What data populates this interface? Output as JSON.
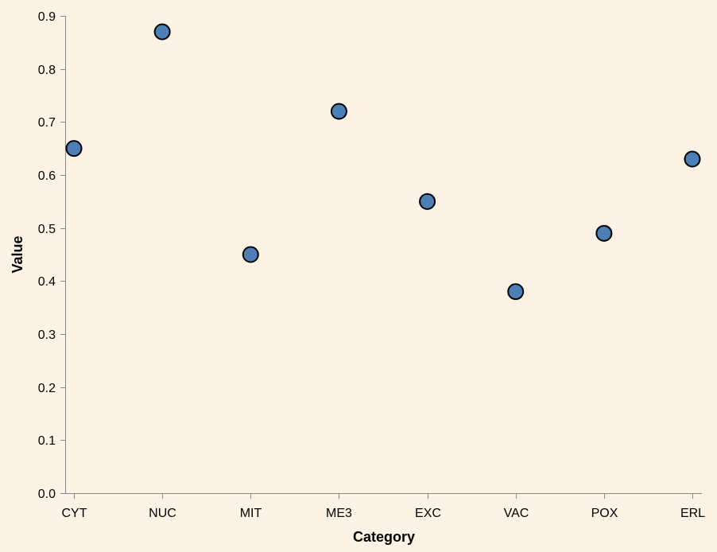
{
  "colors": {
    "background": "#fdf2e3",
    "point_fill": "#4c7fb6",
    "point_stroke": "#000000",
    "axis": "#888888"
  },
  "chart_data": {
    "type": "scatter",
    "title": "",
    "xlabel": "Category",
    "ylabel": "Value",
    "categories": [
      "CYT",
      "NUC",
      "MIT",
      "ME3",
      "EXC",
      "VAC",
      "POX",
      "ERL"
    ],
    "values": [
      0.65,
      0.87,
      0.45,
      0.72,
      0.55,
      0.38,
      0.49,
      0.63
    ],
    "ylim": [
      0,
      0.9
    ],
    "yticks": [
      "0.0",
      "0.1",
      "0.2",
      "0.3",
      "0.4",
      "0.5",
      "0.6",
      "0.7",
      "0.8",
      "0.9"
    ],
    "grid": false,
    "legend": "none"
  }
}
